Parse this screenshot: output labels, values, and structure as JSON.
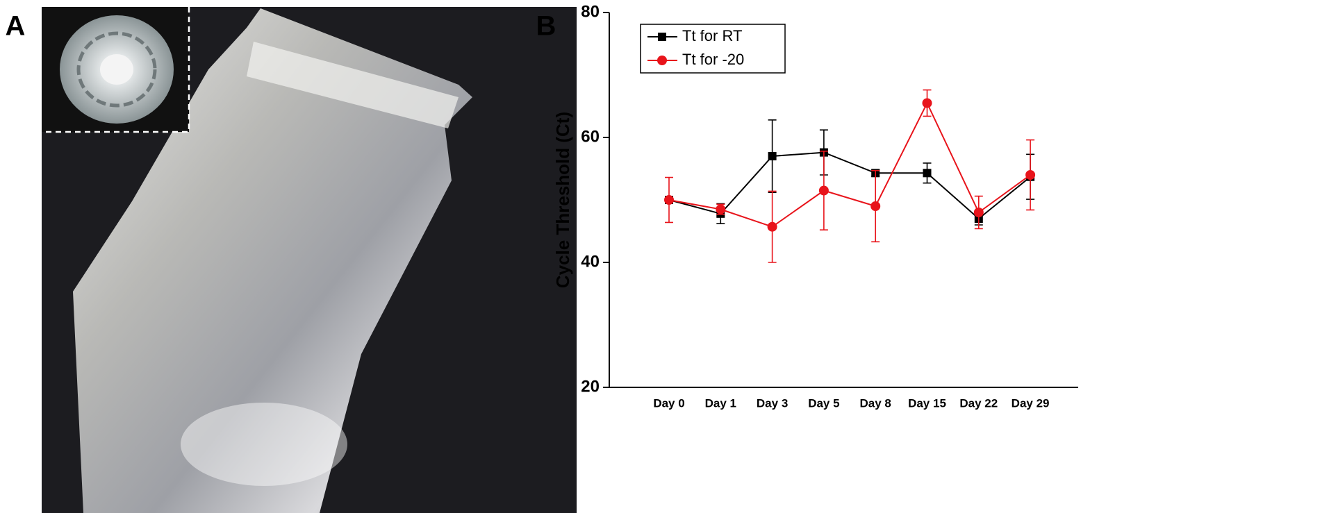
{
  "photo": {
    "panel_label": "A"
  },
  "chart_data": {
    "type": "line",
    "panel_label": "B",
    "y_label": "Cycle Threshold (Ct)",
    "categories": [
      "Day 0",
      "Day 1",
      "Day 3",
      "Day 5",
      "Day 8",
      "Day 15",
      "Day 22",
      "Day 29"
    ],
    "series": [
      {
        "name": "Tt for RT",
        "color": "#000000",
        "marker": "square",
        "values": [
          50,
          47.8,
          57,
          57.6,
          54.3,
          54.3,
          47,
          53.7
        ],
        "errors": [
          0.5,
          1.6,
          5.8,
          3.6,
          0.5,
          1.6,
          1,
          3.6
        ]
      },
      {
        "name": "Tt for -20",
        "color": "#e8141b",
        "marker": "circle",
        "values": [
          50,
          48.5,
          45.7,
          51.5,
          49,
          65.5,
          48,
          54
        ],
        "errors": [
          3.6,
          0.8,
          5.7,
          6.3,
          5.7,
          2.1,
          2.6,
          5.6
        ]
      }
    ],
    "ylim": [
      20,
      80
    ],
    "yticks": [
      20,
      40,
      60,
      80
    ],
    "legend": "upper-left"
  }
}
